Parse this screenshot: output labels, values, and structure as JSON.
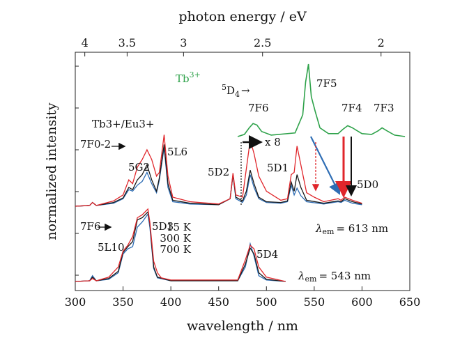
{
  "chart_data": {
    "type": "line",
    "xlabel": "wavelength / nm",
    "ylabel": "normalized intensity",
    "top_xlabel": "photon energy / eV",
    "xlim": [
      300,
      650
    ],
    "x_ticks": [
      300,
      350,
      400,
      450,
      500,
      550,
      600,
      650
    ],
    "top_ticks": [
      {
        "label": "4",
        "ev": 4.0
      },
      {
        "label": "3.5",
        "ev": 3.5
      },
      {
        "label": "3",
        "ev": 3.0
      },
      {
        "label": "2.5",
        "ev": 2.5
      },
      {
        "label": "2",
        "ev": 2.0
      }
    ],
    "colors": {
      "15K": "#2e6db4",
      "300K": "#1a1a1a",
      "700K": "#e0262b",
      "tb": "#2ea24a"
    },
    "legend": [
      {
        "label": "15 K",
        "color": "#2e6db4"
      },
      {
        "label": "300 K",
        "color": "#1a1a1a"
      },
      {
        "label": "700 K",
        "color": "#e0262b"
      }
    ],
    "annotations": {
      "tb_label": "Tb",
      "tb_sup": "3+",
      "tb_d4_num": "5",
      "tb_d4_main": "D",
      "tb_d4_sub": "4",
      "tb_d4_arrow": "→",
      "f6": "7F6",
      "f5": "7F5",
      "f4": "7F4",
      "f3": "7F3",
      "tbeu_label": "Tb3+/Eu3+",
      "f02": "7F0-2",
      "g2": "5G2",
      "l6": "5L6",
      "d2": "5D2",
      "d1": "5D1",
      "d0": "5D0",
      "x8": "x 8",
      "lem1": "= 613 nm",
      "f6_lower": "7F6",
      "d3": "5D3",
      "l10": "5L10",
      "d4_lower": "5D4",
      "lem2": "= 543 nm",
      "lambda": "λ",
      "lambda_sub": "em"
    },
    "series": [
      {
        "name": "15 K",
        "panel": "Tb3+/Eu3+ (λem = 613 nm)",
        "points": [
          [
            300,
            0
          ],
          [
            315,
            0.01
          ],
          [
            318,
            0.05
          ],
          [
            322,
            0.01
          ],
          [
            340,
            0.04
          ],
          [
            350,
            0.1
          ],
          [
            356,
            0.22
          ],
          [
            360,
            0.2
          ],
          [
            365,
            0.28
          ],
          [
            370,
            0.33
          ],
          [
            375,
            0.45
          ],
          [
            380,
            0.3
          ],
          [
            385,
            0.18
          ],
          [
            388,
            0.35
          ],
          [
            393,
            0.78
          ],
          [
            397,
            0.25
          ],
          [
            402,
            0.06
          ],
          [
            420,
            0.03
          ],
          [
            450,
            0.02
          ],
          [
            462,
            0.1
          ],
          [
            465,
            0.42
          ],
          [
            468,
            0.1
          ],
          [
            475,
            0.05
          ],
          [
            479,
            0.15
          ],
          [
            483,
            0.42
          ],
          [
            487,
            0.25
          ],
          [
            492,
            0.1
          ],
          [
            500,
            0.05
          ],
          [
            515,
            0.04
          ],
          [
            522,
            0.06
          ],
          [
            526,
            0.28
          ],
          [
            529,
            0.15
          ],
          [
            532,
            0.24
          ],
          [
            536,
            0.14
          ],
          [
            542,
            0.06
          ],
          [
            560,
            0.03
          ],
          [
            575,
            0.06
          ],
          [
            578,
            0.05
          ],
          [
            582,
            0.08
          ],
          [
            590,
            0.04
          ],
          [
            600,
            0.02
          ]
        ]
      },
      {
        "name": "300 K",
        "panel": "Tb3+/Eu3+ (λem = 613 nm)",
        "points": [
          [
            300,
            0
          ],
          [
            315,
            0.01
          ],
          [
            318,
            0.05
          ],
          [
            322,
            0.01
          ],
          [
            340,
            0.05
          ],
          [
            350,
            0.11
          ],
          [
            356,
            0.25
          ],
          [
            360,
            0.22
          ],
          [
            365,
            0.35
          ],
          [
            370,
            0.42
          ],
          [
            375,
            0.55
          ],
          [
            380,
            0.35
          ],
          [
            385,
            0.2
          ],
          [
            388,
            0.38
          ],
          [
            393,
            0.82
          ],
          [
            397,
            0.3
          ],
          [
            402,
            0.08
          ],
          [
            420,
            0.04
          ],
          [
            450,
            0.02
          ],
          [
            462,
            0.1
          ],
          [
            465,
            0.42
          ],
          [
            468,
            0.12
          ],
          [
            475,
            0.07
          ],
          [
            479,
            0.2
          ],
          [
            483,
            0.48
          ],
          [
            487,
            0.3
          ],
          [
            492,
            0.12
          ],
          [
            500,
            0.06
          ],
          [
            515,
            0.05
          ],
          [
            522,
            0.07
          ],
          [
            526,
            0.32
          ],
          [
            529,
            0.2
          ],
          [
            532,
            0.42
          ],
          [
            536,
            0.25
          ],
          [
            542,
            0.08
          ],
          [
            560,
            0.04
          ],
          [
            575,
            0.07
          ],
          [
            578,
            0.06
          ],
          [
            582,
            0.1
          ],
          [
            590,
            0.06
          ],
          [
            600,
            0.03
          ]
        ]
      },
      {
        "name": "700 K",
        "panel": "Tb3+/Eu3+ (λem = 613 nm)",
        "points": [
          [
            300,
            0
          ],
          [
            315,
            0.01
          ],
          [
            318,
            0.05
          ],
          [
            322,
            0.01
          ],
          [
            340,
            0.07
          ],
          [
            350,
            0.15
          ],
          [
            356,
            0.35
          ],
          [
            360,
            0.3
          ],
          [
            365,
            0.52
          ],
          [
            370,
            0.62
          ],
          [
            375,
            0.75
          ],
          [
            380,
            0.62
          ],
          [
            385,
            0.4
          ],
          [
            388,
            0.45
          ],
          [
            393,
            0.95
          ],
          [
            397,
            0.4
          ],
          [
            402,
            0.12
          ],
          [
            420,
            0.06
          ],
          [
            450,
            0.03
          ],
          [
            462,
            0.1
          ],
          [
            465,
            0.44
          ],
          [
            468,
            0.15
          ],
          [
            475,
            0.12
          ],
          [
            479,
            0.5
          ],
          [
            483,
            0.88
          ],
          [
            487,
            0.7
          ],
          [
            492,
            0.4
          ],
          [
            500,
            0.2
          ],
          [
            515,
            0.08
          ],
          [
            522,
            0.1
          ],
          [
            526,
            0.42
          ],
          [
            529,
            0.45
          ],
          [
            532,
            0.8
          ],
          [
            536,
            0.55
          ],
          [
            542,
            0.18
          ],
          [
            550,
            0.12
          ],
          [
            560,
            0.06
          ],
          [
            575,
            0.1
          ],
          [
            578,
            0.08
          ],
          [
            582,
            0.12
          ],
          [
            590,
            0.08
          ],
          [
            600,
            0.04
          ]
        ]
      },
      {
        "name": "15 K",
        "panel": "Tb3+ (λem = 543 nm)",
        "points": [
          [
            300,
            0
          ],
          [
            315,
            0.01
          ],
          [
            318,
            0.08
          ],
          [
            322,
            0.01
          ],
          [
            335,
            0.03
          ],
          [
            345,
            0.12
          ],
          [
            350,
            0.38
          ],
          [
            355,
            0.45
          ],
          [
            360,
            0.48
          ],
          [
            365,
            0.75
          ],
          [
            370,
            0.82
          ],
          [
            376,
            0.93
          ],
          [
            378,
            0.75
          ],
          [
            382,
            0.18
          ],
          [
            386,
            0.05
          ],
          [
            400,
            0.01
          ],
          [
            470,
            0.01
          ],
          [
            478,
            0.2
          ],
          [
            483,
            0.52
          ],
          [
            487,
            0.35
          ],
          [
            492,
            0.08
          ],
          [
            500,
            0.02
          ],
          [
            520,
            0
          ]
        ]
      },
      {
        "name": "300 K",
        "panel": "Tb3+ (λem = 543 nm)",
        "points": [
          [
            300,
            0
          ],
          [
            315,
            0.01
          ],
          [
            318,
            0.06
          ],
          [
            322,
            0.01
          ],
          [
            335,
            0.04
          ],
          [
            345,
            0.14
          ],
          [
            350,
            0.4
          ],
          [
            355,
            0.48
          ],
          [
            360,
            0.55
          ],
          [
            365,
            0.85
          ],
          [
            370,
            0.88
          ],
          [
            376,
            0.96
          ],
          [
            378,
            0.8
          ],
          [
            382,
            0.2
          ],
          [
            386,
            0.06
          ],
          [
            400,
            0.01
          ],
          [
            470,
            0.01
          ],
          [
            478,
            0.24
          ],
          [
            483,
            0.46
          ],
          [
            487,
            0.38
          ],
          [
            492,
            0.12
          ],
          [
            500,
            0.03
          ],
          [
            520,
            0
          ]
        ]
      },
      {
        "name": "700 K",
        "panel": "Tb3+ (λem = 543 nm)",
        "points": [
          [
            300,
            0
          ],
          [
            315,
            0.01
          ],
          [
            318,
            0.04
          ],
          [
            322,
            0.01
          ],
          [
            335,
            0.06
          ],
          [
            345,
            0.2
          ],
          [
            350,
            0.42
          ],
          [
            355,
            0.5
          ],
          [
            360,
            0.62
          ],
          [
            365,
            0.88
          ],
          [
            370,
            0.92
          ],
          [
            376,
            1.0
          ],
          [
            378,
            0.82
          ],
          [
            382,
            0.28
          ],
          [
            386,
            0.12
          ],
          [
            390,
            0.05
          ],
          [
            400,
            0.02
          ],
          [
            470,
            0.02
          ],
          [
            478,
            0.3
          ],
          [
            483,
            0.5
          ],
          [
            487,
            0.45
          ],
          [
            492,
            0.2
          ],
          [
            500,
            0.06
          ],
          [
            520,
            0
          ]
        ]
      },
      {
        "name": "Tb3+",
        "panel": "Tb3+ emission",
        "points": [
          [
            470,
            0
          ],
          [
            477,
            0.03
          ],
          [
            482,
            0.12
          ],
          [
            486,
            0.18
          ],
          [
            490,
            0.16
          ],
          [
            495,
            0.07
          ],
          [
            505,
            0.02
          ],
          [
            530,
            0.05
          ],
          [
            538,
            0.3
          ],
          [
            541,
            0.75
          ],
          [
            544,
            1.0
          ],
          [
            547,
            0.55
          ],
          [
            551,
            0.35
          ],
          [
            556,
            0.12
          ],
          [
            565,
            0.04
          ],
          [
            575,
            0.04
          ],
          [
            580,
            0.1
          ],
          [
            585,
            0.15
          ],
          [
            590,
            0.12
          ],
          [
            600,
            0.04
          ],
          [
            610,
            0.03
          ],
          [
            617,
            0.08
          ],
          [
            621,
            0.12
          ],
          [
            626,
            0.08
          ],
          [
            634,
            0.02
          ],
          [
            645,
            0
          ]
        ]
      }
    ]
  }
}
